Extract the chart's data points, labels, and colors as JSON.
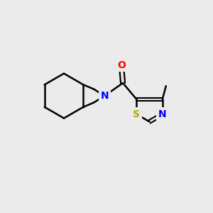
{
  "bg_color": "#ebebeb",
  "bond_color": "#000000",
  "line_width": 1.8,
  "atom_colors": {
    "N": "#0000ff",
    "O": "#ff0000",
    "S": "#aaaa00"
  },
  "font_size_atom": 10
}
